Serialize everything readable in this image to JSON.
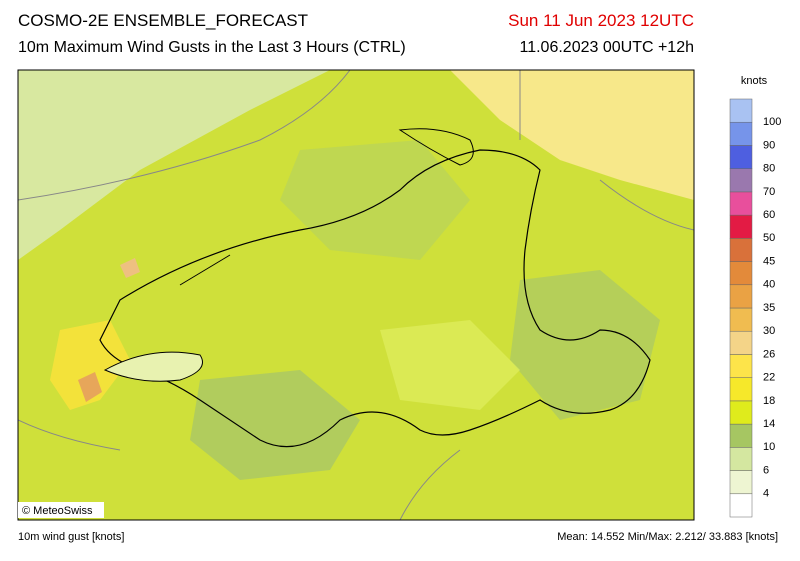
{
  "header": {
    "title": "COSMO-2E ENSEMBLE_FORECAST",
    "subtitle": "10m Maximum Wind Gusts in the Last 3 Hours (CTRL)",
    "valid_time": "Sun 11 Jun 2023 12UTC",
    "run_time": "11.06.2023 00UTC +12h"
  },
  "map": {
    "credit": "© MeteoSwiss"
  },
  "legend": {
    "unit": "knots",
    "levels": [
      4,
      6,
      10,
      14,
      18,
      22,
      26,
      30,
      35,
      40,
      45,
      50,
      60,
      70,
      80,
      90,
      100
    ],
    "colors": [
      "#ffffff",
      "#eef5d2",
      "#d4e7a0",
      "#a6c662",
      "#dfeb1c",
      "#f6e82a",
      "#fde44a",
      "#f4d488",
      "#f0bc50",
      "#eaa244",
      "#e38a3a",
      "#d9713a",
      "#e31b44",
      "#e84f9c",
      "#9a78ae",
      "#4e5fe0",
      "#7694ea",
      "#a9c2f2"
    ]
  },
  "footer": {
    "left": "10m wind gust [knots]",
    "right": "Mean: 14.552 Min/Max:  2.212/ 33.883 [knots]"
  }
}
